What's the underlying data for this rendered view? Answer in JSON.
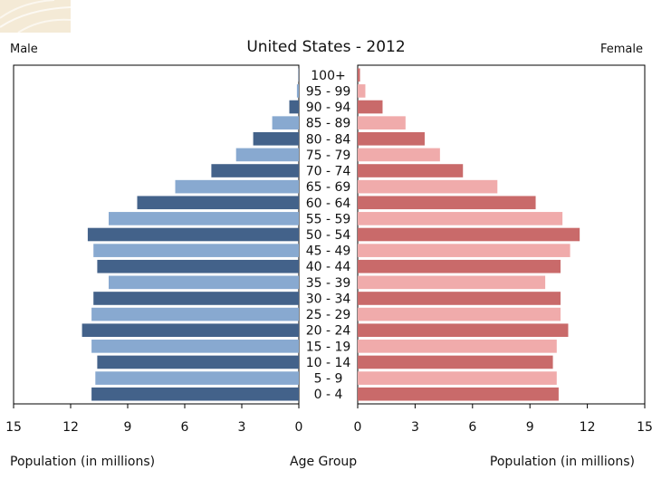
{
  "chart_data": {
    "type": "bar",
    "orientation": "horizontal-population-pyramid",
    "title": "United States - 2012",
    "left_label": "Male",
    "right_label": "Female",
    "xlabel_left": "Population (in millions)",
    "xlabel_center": "Age Group",
    "xlabel_right": "Population (in millions)",
    "xlim": [
      0,
      15
    ],
    "ticks": [
      0,
      3,
      6,
      9,
      12,
      15
    ],
    "categories": [
      "100+",
      "95 - 99",
      "90 - 94",
      "85 - 89",
      "80 - 84",
      "75 - 79",
      "70 - 74",
      "65 - 69",
      "60 - 64",
      "55 - 59",
      "50 - 54",
      "45 - 49",
      "40 - 44",
      "35 - 39",
      "30 - 34",
      "25 - 29",
      "20 - 24",
      "15 - 19",
      "10 - 14",
      "5 - 9",
      "0 - 4"
    ],
    "series": [
      {
        "name": "Male",
        "values": [
          0.02,
          0.1,
          0.5,
          1.4,
          2.4,
          3.3,
          4.6,
          6.5,
          8.5,
          10.0,
          11.1,
          10.8,
          10.6,
          10.0,
          10.8,
          10.9,
          11.4,
          10.9,
          10.6,
          10.7,
          10.9
        ]
      },
      {
        "name": "Female",
        "values": [
          0.12,
          0.4,
          1.3,
          2.5,
          3.5,
          4.3,
          5.5,
          7.3,
          9.3,
          10.7,
          11.6,
          11.1,
          10.6,
          9.8,
          10.6,
          10.6,
          11.0,
          10.4,
          10.2,
          10.4,
          10.5
        ]
      }
    ],
    "colors": {
      "male_dark": "#43628a",
      "male_light": "#88a9d0",
      "female_dark": "#c96a6a",
      "female_light": "#f0abab",
      "frame": "#000000",
      "decoration": "#f4ead6"
    }
  }
}
